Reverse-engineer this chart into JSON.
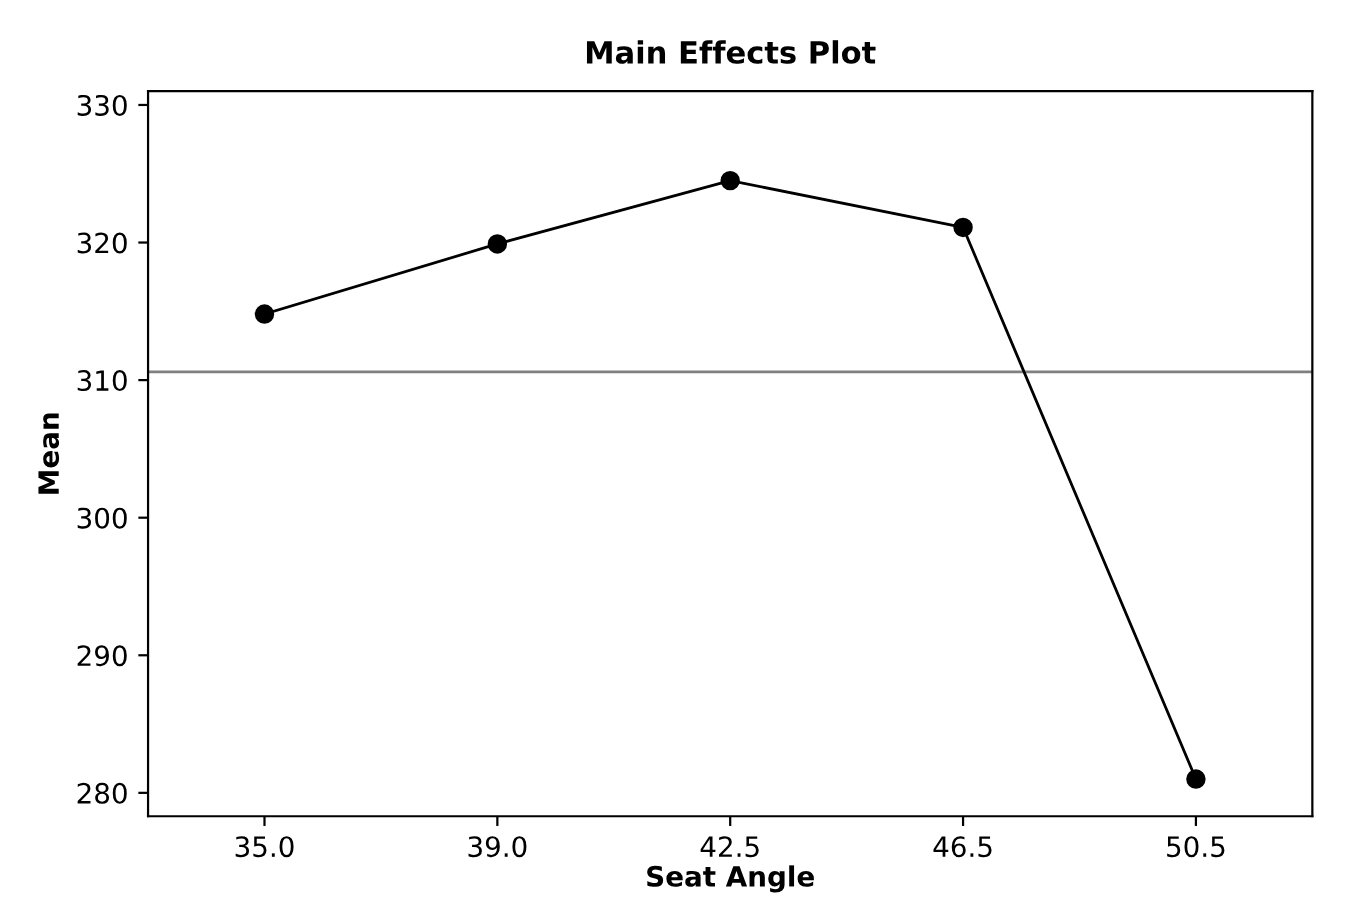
{
  "chart_data": {
    "type": "line",
    "title": "Main Effects Plot",
    "xlabel": "Seat Angle",
    "ylabel": "Mean",
    "categories": [
      "35.0",
      "39.0",
      "42.5",
      "46.5",
      "50.5"
    ],
    "series": [
      {
        "color": "#000000",
        "values": [
          314.8,
          319.9,
          324.5,
          321.1,
          281.0
        ]
      }
    ],
    "ylim": [
      278.3,
      331
    ],
    "yticks": [
      280,
      290,
      300,
      310,
      320,
      330
    ],
    "ref_lines": [
      {
        "axis": "y",
        "value": 310.6,
        "color": "#808080"
      }
    ],
    "marker": "circle",
    "line_style": "solid",
    "grid": false,
    "legend": false
  }
}
